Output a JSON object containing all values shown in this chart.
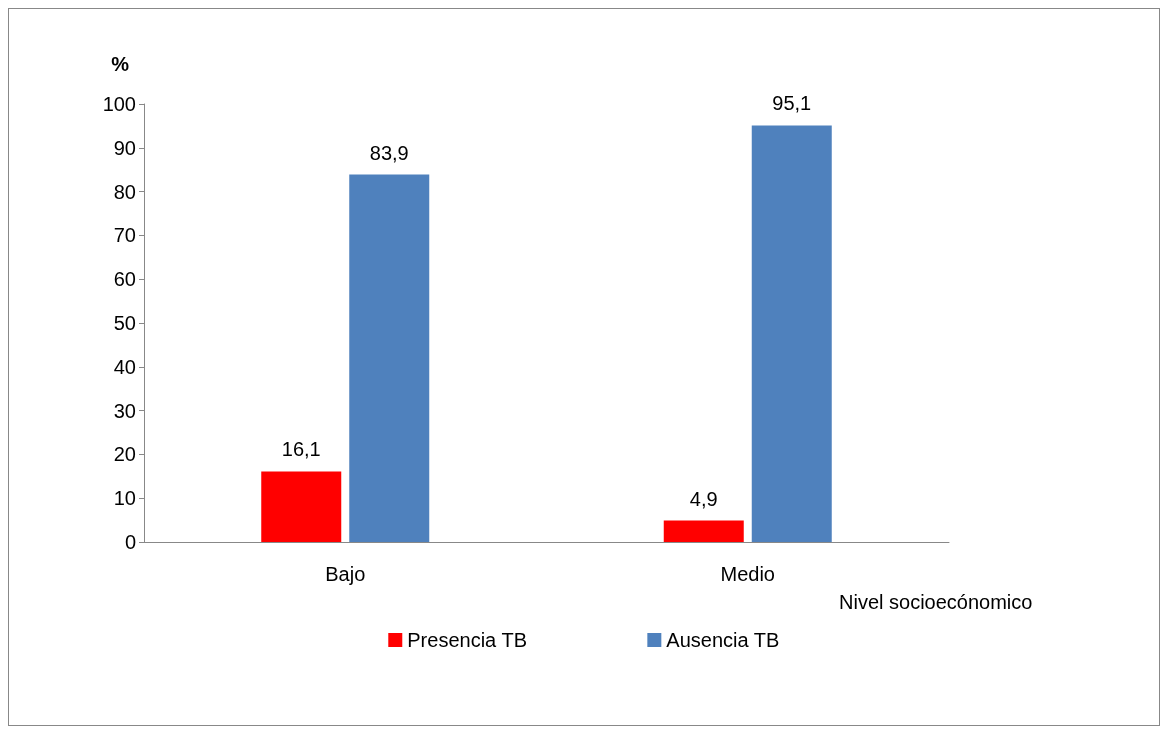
{
  "chart_data": {
    "type": "bar",
    "ylabel": "%",
    "xlabel": "Nivel socioecónomico",
    "categories": [
      "Bajo",
      "Medio"
    ],
    "series": [
      {
        "name": "Presencia TB",
        "color": "#ff0000",
        "values": [
          16.1,
          4.9
        ],
        "value_labels": [
          "16,1",
          "4,9"
        ]
      },
      {
        "name": "Ausencia TB",
        "color": "#4f81bd",
        "values": [
          83.9,
          95.1
        ],
        "value_labels": [
          "83,9",
          "95,1"
        ]
      }
    ],
    "ylim": [
      0,
      100
    ],
    "yticks": [
      0,
      10,
      20,
      30,
      40,
      50,
      60,
      70,
      80,
      90,
      100
    ],
    "grid": false,
    "legend": "bottom"
  }
}
